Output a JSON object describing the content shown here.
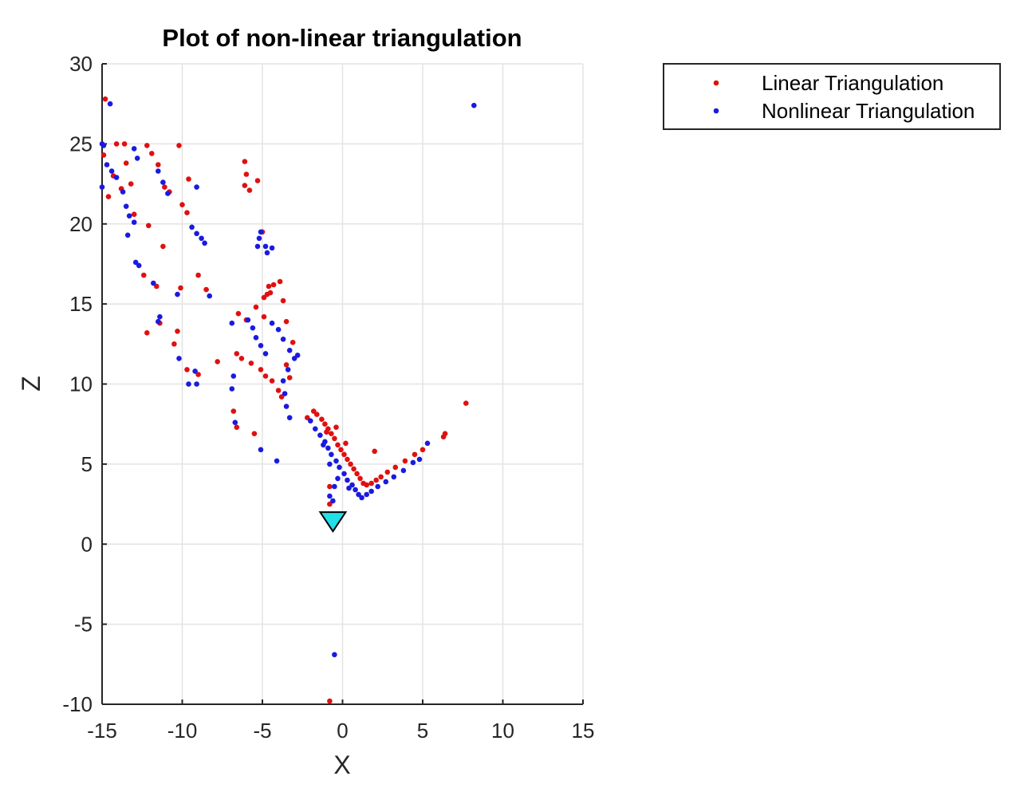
{
  "chart_data": {
    "type": "scatter",
    "title": "Plot of non-linear triangulation",
    "xlabel": "X",
    "ylabel": "Z",
    "xlim": [
      -15,
      15
    ],
    "ylim": [
      -10,
      30
    ],
    "x_ticks": [
      -15,
      -10,
      -5,
      0,
      5,
      10,
      15
    ],
    "y_ticks": [
      -10,
      -5,
      0,
      5,
      10,
      15,
      20,
      25,
      30
    ],
    "grid": true,
    "legend_position": "outside-top-right",
    "series": [
      {
        "name": "Linear Triangulation",
        "color": "#e01010",
        "points": [
          [
            -14.8,
            27.8
          ],
          [
            -14.9,
            24.3
          ],
          [
            -14.3,
            23.0
          ],
          [
            -14.6,
            21.7
          ],
          [
            -14.1,
            25.0
          ],
          [
            -13.6,
            25.0
          ],
          [
            -13.5,
            23.8
          ],
          [
            -13.2,
            22.5
          ],
          [
            -13.8,
            22.2
          ],
          [
            -13.0,
            20.6
          ],
          [
            -12.2,
            24.9
          ],
          [
            -11.9,
            24.4
          ],
          [
            -11.5,
            23.7
          ],
          [
            -11.1,
            22.3
          ],
          [
            -10.8,
            22.0
          ],
          [
            -10.2,
            24.9
          ],
          [
            -10.0,
            21.2
          ],
          [
            -9.7,
            20.7
          ],
          [
            -9.6,
            22.8
          ],
          [
            -12.1,
            19.9
          ],
          [
            -11.2,
            18.6
          ],
          [
            -12.4,
            16.8
          ],
          [
            -11.6,
            16.1
          ],
          [
            -10.1,
            16.0
          ],
          [
            -9.0,
            16.8
          ],
          [
            -8.5,
            15.9
          ],
          [
            -12.2,
            13.2
          ],
          [
            -11.4,
            13.8
          ],
          [
            -10.5,
            12.5
          ],
          [
            -10.3,
            13.3
          ],
          [
            -9.7,
            10.9
          ],
          [
            -9.0,
            10.6
          ],
          [
            -7.8,
            11.4
          ],
          [
            -6.8,
            8.3
          ],
          [
            -6.6,
            7.3
          ],
          [
            -6.1,
            23.9
          ],
          [
            -6.0,
            23.1
          ],
          [
            -6.1,
            22.4
          ],
          [
            -5.8,
            22.1
          ],
          [
            -5.3,
            22.7
          ],
          [
            -5.0,
            19.5
          ],
          [
            -6.0,
            14.0
          ],
          [
            -6.5,
            14.4
          ],
          [
            -5.4,
            14.8
          ],
          [
            -4.9,
            15.4
          ],
          [
            -4.6,
            16.1
          ],
          [
            -4.3,
            16.2
          ],
          [
            -3.9,
            16.4
          ],
          [
            -4.5,
            15.7
          ],
          [
            -4.7,
            15.6
          ],
          [
            -3.7,
            15.2
          ],
          [
            -4.9,
            14.2
          ],
          [
            -3.5,
            13.9
          ],
          [
            -3.1,
            12.6
          ],
          [
            -6.6,
            11.9
          ],
          [
            -6.3,
            11.6
          ],
          [
            -5.7,
            11.3
          ],
          [
            -5.1,
            10.9
          ],
          [
            -4.8,
            10.5
          ],
          [
            -4.4,
            10.2
          ],
          [
            -4.0,
            9.6
          ],
          [
            -3.8,
            9.2
          ],
          [
            -3.5,
            11.2
          ],
          [
            -3.3,
            10.4
          ],
          [
            -5.5,
            6.9
          ],
          [
            -2.2,
            7.9
          ],
          [
            -1.8,
            8.3
          ],
          [
            -1.6,
            8.1
          ],
          [
            -1.3,
            7.8
          ],
          [
            -1.1,
            7.5
          ],
          [
            -0.9,
            7.2
          ],
          [
            -0.7,
            6.9
          ],
          [
            -0.5,
            6.6
          ],
          [
            -0.3,
            6.2
          ],
          [
            -0.1,
            5.9
          ],
          [
            0.1,
            5.6
          ],
          [
            0.3,
            5.3
          ],
          [
            0.5,
            5.0
          ],
          [
            0.7,
            4.7
          ],
          [
            0.9,
            4.4
          ],
          [
            1.1,
            4.1
          ],
          [
            1.3,
            3.8
          ],
          [
            1.5,
            3.7
          ],
          [
            1.8,
            3.8
          ],
          [
            2.1,
            4.0
          ],
          [
            2.4,
            4.2
          ],
          [
            2.8,
            4.5
          ],
          [
            3.3,
            4.8
          ],
          [
            3.9,
            5.2
          ],
          [
            4.5,
            5.6
          ],
          [
            5.0,
            5.9
          ],
          [
            2.0,
            5.8
          ],
          [
            6.3,
            6.7
          ],
          [
            6.4,
            6.9
          ],
          [
            7.7,
            8.8
          ],
          [
            -0.8,
            3.6
          ],
          [
            -0.8,
            2.5
          ],
          [
            -0.8,
            -9.8
          ],
          [
            -1.0,
            7.0
          ],
          [
            -0.4,
            7.3
          ],
          [
            0.2,
            6.3
          ]
        ]
      },
      {
        "name": "Nonlinear Triangulation",
        "color": "#1a1ae0",
        "points": [
          [
            -14.5,
            27.5
          ],
          [
            -15.0,
            25.0
          ],
          [
            -15.0,
            22.3
          ],
          [
            -14.7,
            23.7
          ],
          [
            -14.4,
            23.3
          ],
          [
            -14.1,
            22.9
          ],
          [
            -13.7,
            22.0
          ],
          [
            -13.5,
            21.1
          ],
          [
            -13.3,
            20.5
          ],
          [
            -13.0,
            20.1
          ],
          [
            -13.4,
            19.3
          ],
          [
            -12.9,
            17.6
          ],
          [
            -12.7,
            17.4
          ],
          [
            -11.8,
            16.3
          ],
          [
            -11.4,
            14.2
          ],
          [
            -11.5,
            13.9
          ],
          [
            -10.2,
            11.6
          ],
          [
            -9.6,
            10.0
          ],
          [
            -9.1,
            10.0
          ],
          [
            -9.2,
            10.8
          ],
          [
            -8.3,
            15.5
          ],
          [
            -8.6,
            18.8
          ],
          [
            -9.4,
            19.8
          ],
          [
            -9.1,
            19.4
          ],
          [
            -8.8,
            19.1
          ],
          [
            -9.1,
            22.3
          ],
          [
            -10.3,
            15.6
          ],
          [
            -11.5,
            23.3
          ],
          [
            -11.2,
            22.6
          ],
          [
            -10.9,
            21.9
          ],
          [
            -13.0,
            24.7
          ],
          [
            -12.8,
            24.1
          ],
          [
            -14.9,
            24.9
          ],
          [
            -6.9,
            13.8
          ],
          [
            -6.8,
            10.5
          ],
          [
            -6.9,
            9.7
          ],
          [
            -6.7,
            7.6
          ],
          [
            -5.9,
            14.0
          ],
          [
            -5.6,
            13.5
          ],
          [
            -5.4,
            12.9
          ],
          [
            -5.1,
            12.4
          ],
          [
            -4.8,
            11.9
          ],
          [
            -4.4,
            13.8
          ],
          [
            -4.0,
            13.4
          ],
          [
            -3.7,
            12.8
          ],
          [
            -3.3,
            12.1
          ],
          [
            -3.0,
            11.6
          ],
          [
            -2.8,
            11.8
          ],
          [
            -3.4,
            10.9
          ],
          [
            -3.7,
            10.2
          ],
          [
            -3.6,
            9.4
          ],
          [
            -3.5,
            8.6
          ],
          [
            -3.3,
            7.9
          ],
          [
            -5.3,
            18.6
          ],
          [
            -5.2,
            19.1
          ],
          [
            -5.1,
            19.5
          ],
          [
            -4.8,
            18.6
          ],
          [
            -4.7,
            18.2
          ],
          [
            -4.4,
            18.5
          ],
          [
            -5.1,
            5.9
          ],
          [
            -4.1,
            5.2
          ],
          [
            -2.0,
            7.7
          ],
          [
            -1.7,
            7.2
          ],
          [
            -1.4,
            6.8
          ],
          [
            -1.1,
            6.4
          ],
          [
            -0.9,
            6.0
          ],
          [
            -0.7,
            5.6
          ],
          [
            -0.4,
            5.2
          ],
          [
            -0.2,
            4.8
          ],
          [
            0.1,
            4.4
          ],
          [
            0.3,
            4.0
          ],
          [
            0.6,
            3.7
          ],
          [
            0.8,
            3.4
          ],
          [
            1.0,
            3.1
          ],
          [
            1.2,
            2.9
          ],
          [
            1.5,
            3.1
          ],
          [
            1.8,
            3.3
          ],
          [
            2.2,
            3.6
          ],
          [
            2.7,
            3.9
          ],
          [
            3.2,
            4.2
          ],
          [
            3.8,
            4.6
          ],
          [
            4.4,
            5.1
          ],
          [
            4.8,
            5.3
          ],
          [
            5.3,
            6.3
          ],
          [
            -0.8,
            3.0
          ],
          [
            -0.6,
            2.7
          ],
          [
            -0.5,
            3.6
          ],
          [
            -0.3,
            4.1
          ],
          [
            8.2,
            27.4
          ],
          [
            -0.5,
            -6.9
          ],
          [
            -1.2,
            6.2
          ],
          [
            -0.8,
            5.0
          ],
          [
            0.4,
            3.5
          ]
        ]
      }
    ],
    "camera": {
      "x": -0.6,
      "y": 1.4,
      "fill": "#22e0e8"
    }
  }
}
